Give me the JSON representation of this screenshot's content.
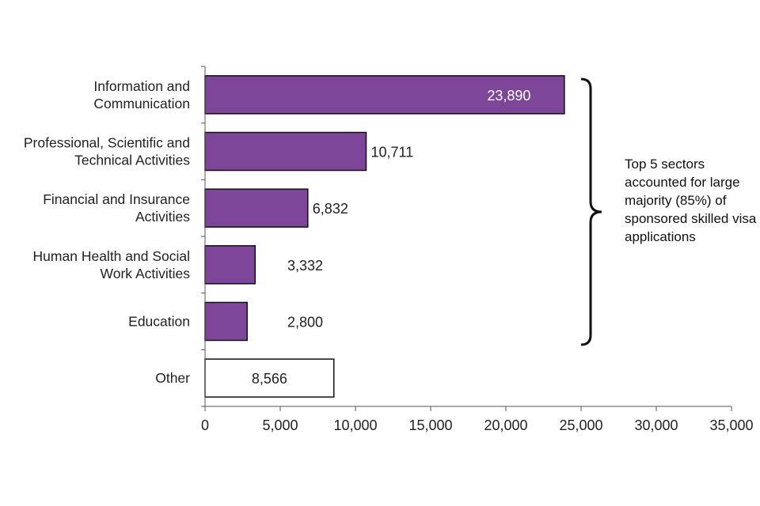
{
  "chart_data": {
    "type": "bar",
    "orientation": "horizontal",
    "categories": [
      [
        "Information and",
        "Communication"
      ],
      [
        "Professional, Scientific and",
        "Technical Activities"
      ],
      [
        "Financial and Insurance",
        "Activities"
      ],
      [
        "Human Health and Social",
        "Work Activities"
      ],
      [
        "Education"
      ],
      [
        "Other"
      ]
    ],
    "values": [
      23890,
      10711,
      6832,
      3332,
      2800,
      8566
    ],
    "value_labels": [
      "23,890",
      "10,711",
      "6,832",
      "3,332",
      "2,800",
      "8,566"
    ],
    "bar_colors": [
      "#7d4698",
      "#7d4698",
      "#7d4698",
      "#7d4698",
      "#7d4698",
      "#ffffff"
    ],
    "xlim": [
      0,
      35000
    ],
    "xticks": [
      0,
      5000,
      10000,
      15000,
      20000,
      25000,
      30000,
      35000
    ],
    "xtick_labels": [
      "0",
      "5,000",
      "10,000",
      "15,000",
      "20,000",
      "25,000",
      "30,000",
      "35,000"
    ],
    "title": "",
    "xlabel": "",
    "ylabel": "",
    "grid": false
  },
  "annotation": {
    "text": "Top 5 sectors accounted for large majority (85%) of sponsored skilled visa applications",
    "brace_covers": "top 5 bars"
  },
  "colors": {
    "accent": "#7d4698",
    "axis": "#555555",
    "text": "#222222"
  }
}
